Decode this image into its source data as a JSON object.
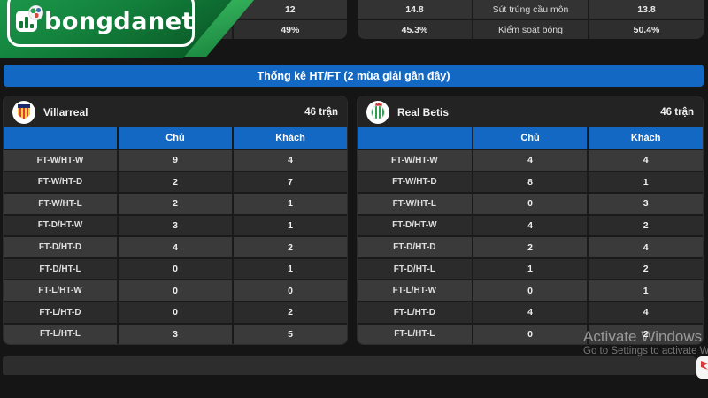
{
  "brand": {
    "name": "bongdanet"
  },
  "top_stats": {
    "left_card": {
      "rows": [
        {
          "home": "",
          "label": "",
          "away": "12"
        },
        {
          "home": "",
          "label": "",
          "away": "49%"
        }
      ]
    },
    "right_card": {
      "rows": [
        {
          "home": "14.8",
          "label": "Sút trúng cầu môn",
          "away": "13.8"
        },
        {
          "home": "45.3%",
          "label": "Kiểm soát bóng",
          "away": "50.4%"
        }
      ]
    }
  },
  "section": {
    "title": "Thống kê HT/FT (2 mùa giải gần đây)"
  },
  "columns": {
    "home": "Chủ",
    "away": "Khách"
  },
  "tables": [
    {
      "team": "Villarreal",
      "matches": "46 trận",
      "rows": [
        {
          "label": "FT-W/HT-W",
          "home": "9",
          "away": "4"
        },
        {
          "label": "FT-W/HT-D",
          "home": "2",
          "away": "7"
        },
        {
          "label": "FT-W/HT-L",
          "home": "2",
          "away": "1"
        },
        {
          "label": "FT-D/HT-W",
          "home": "3",
          "away": "1"
        },
        {
          "label": "FT-D/HT-D",
          "home": "4",
          "away": "2"
        },
        {
          "label": "FT-D/HT-L",
          "home": "0",
          "away": "1"
        },
        {
          "label": "FT-L/HT-W",
          "home": "0",
          "away": "0"
        },
        {
          "label": "FT-L/HT-D",
          "home": "0",
          "away": "2"
        },
        {
          "label": "FT-L/HT-L",
          "home": "3",
          "away": "5"
        }
      ]
    },
    {
      "team": "Real Betis",
      "matches": "46 trận",
      "rows": [
        {
          "label": "FT-W/HT-W",
          "home": "4",
          "away": "4"
        },
        {
          "label": "FT-W/HT-D",
          "home": "8",
          "away": "1"
        },
        {
          "label": "FT-W/HT-L",
          "home": "0",
          "away": "3"
        },
        {
          "label": "FT-D/HT-W",
          "home": "4",
          "away": "2"
        },
        {
          "label": "FT-D/HT-D",
          "home": "2",
          "away": "4"
        },
        {
          "label": "FT-D/HT-L",
          "home": "1",
          "away": "2"
        },
        {
          "label": "FT-L/HT-W",
          "home": "0",
          "away": "1"
        },
        {
          "label": "FT-L/HT-D",
          "home": "4",
          "away": "4"
        },
        {
          "label": "FT-L/HT-L",
          "home": "0",
          "away": "2"
        }
      ]
    }
  ],
  "watermark": {
    "line1": "Activate Windows",
    "line2": "Go to Settings to activate Windows"
  },
  "colors": {
    "accent_blue": "#1368c4",
    "brand_green": "#13813c"
  }
}
